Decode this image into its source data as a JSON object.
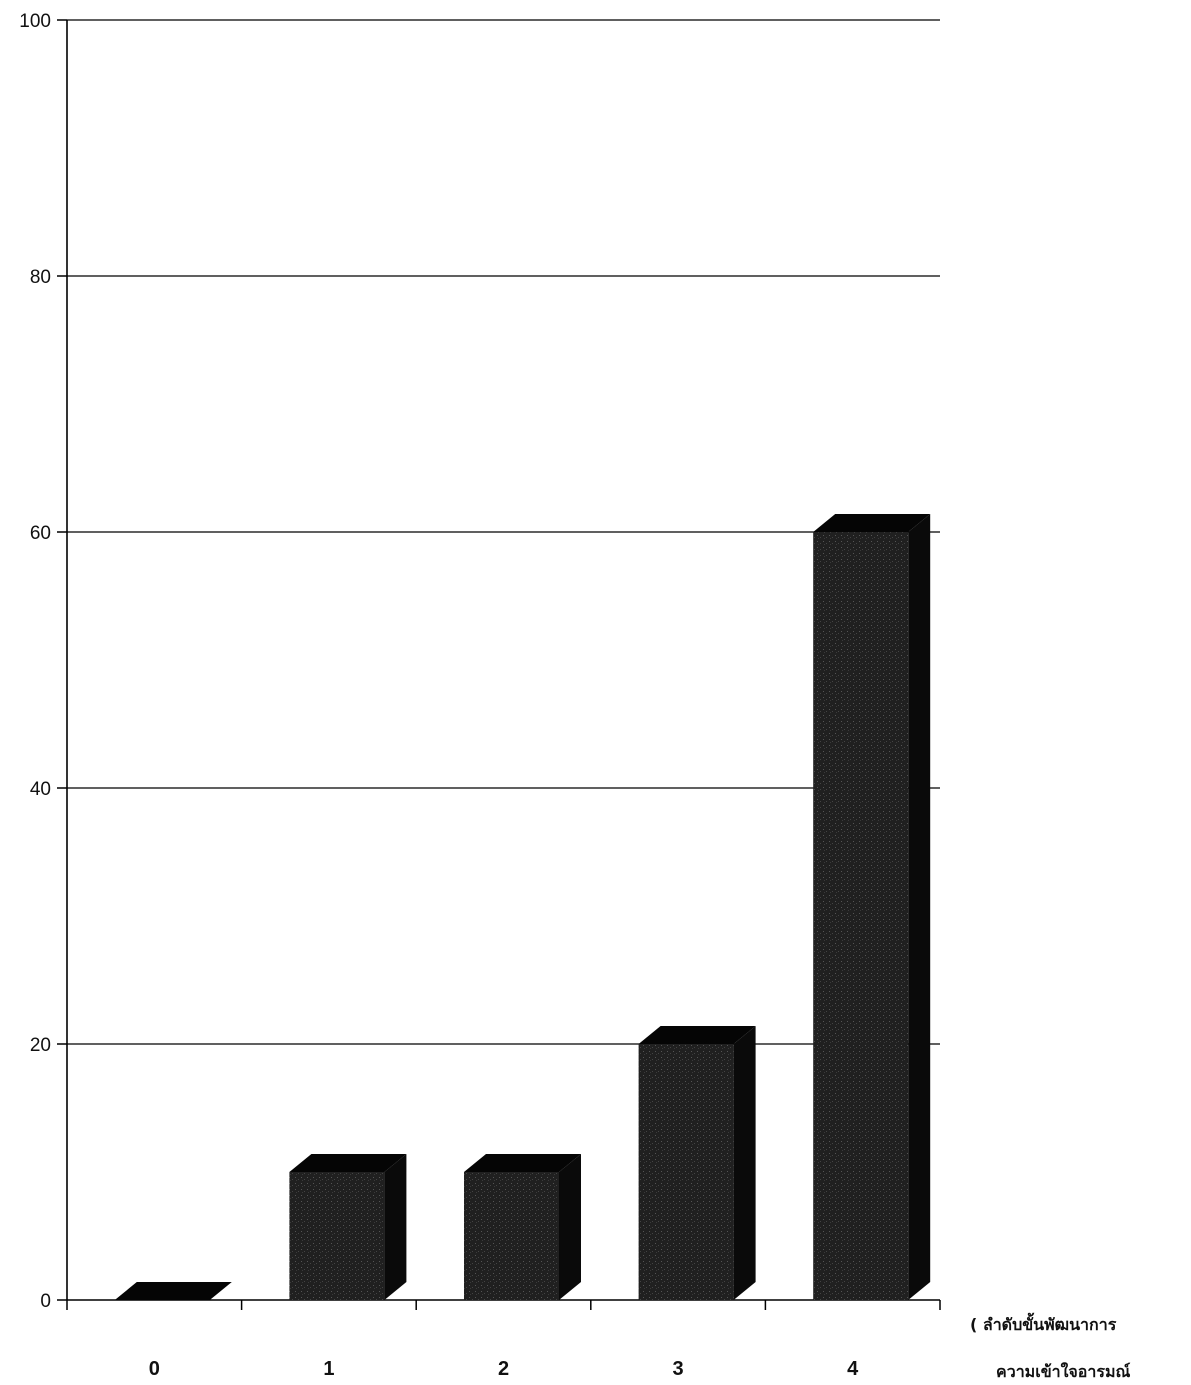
{
  "chart_data": {
    "type": "bar",
    "categories": [
      "0",
      "1",
      "2",
      "3",
      "4"
    ],
    "values": [
      0,
      10,
      10,
      20,
      60
    ],
    "yticks": [
      0,
      20,
      40,
      60,
      80,
      100
    ],
    "ylim": [
      0,
      100
    ],
    "grid": true,
    "style": "3d",
    "xlabel_lines": [
      "( ลำดับขั้นพัฒนาการ",
      "ความเข้าใจอารมณ์"
    ],
    "colors": {
      "bar_front": "#1c1c1c",
      "bar_top": "#050505",
      "bar_side": "#0a0a0a",
      "grid": "#000000",
      "axis": "#000000"
    }
  }
}
